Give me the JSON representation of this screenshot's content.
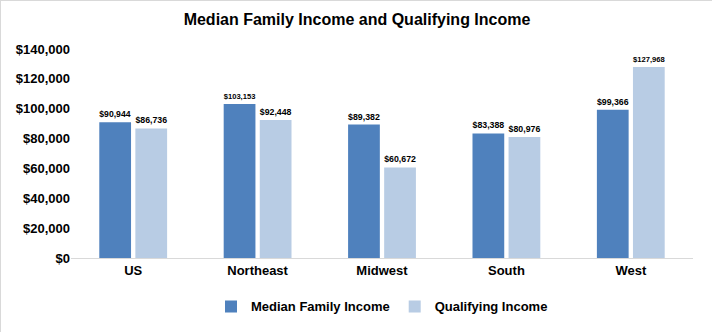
{
  "chart_data": {
    "type": "bar",
    "title": "Median Family Income and Qualifying Income",
    "categories": [
      "US",
      "Northeast",
      "Midwest",
      "South",
      "West"
    ],
    "series": [
      {
        "name": "Median Family Income",
        "color": "#4f81bd",
        "values": [
          90944,
          103153,
          89382,
          83388,
          99366
        ],
        "value_labels": [
          "$90,944",
          "$103,153",
          "$89,382",
          "$83,388",
          "$99,366"
        ]
      },
      {
        "name": "Qualifying Income",
        "color": "#b8cce4",
        "values": [
          86736,
          92448,
          60672,
          80976,
          127968
        ],
        "value_labels": [
          "$86,736",
          "$92,448",
          "$60,672",
          "$80,976",
          "$127,968"
        ]
      }
    ],
    "ylim": [
      0,
      140000
    ],
    "yticks": [
      {
        "value": 0,
        "label": "$0"
      },
      {
        "value": 20000,
        "label": "$20,000"
      },
      {
        "value": 40000,
        "label": "$40,000"
      },
      {
        "value": 60000,
        "label": "$60,000"
      },
      {
        "value": 80000,
        "label": "$80,000"
      },
      {
        "value": 100000,
        "label": "$100,000"
      },
      {
        "value": 120000,
        "label": "$120,000"
      },
      {
        "value": 140000,
        "label": "$140,000"
      }
    ],
    "grid": false,
    "legend": "bottom",
    "data_labels": true
  }
}
